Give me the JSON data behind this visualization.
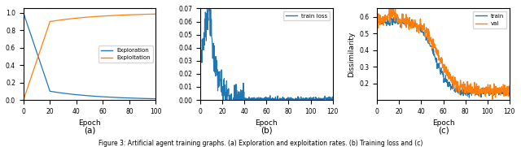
{
  "fig_width": 6.4,
  "fig_height": 1.81,
  "dpi": 100,
  "subplot_a": {
    "xlabel": "Epoch",
    "xlim": [
      0,
      100
    ],
    "ylim": [
      0,
      1.05
    ],
    "yticks": [
      0.0,
      0.2,
      0.4,
      0.6,
      0.8,
      1.0
    ],
    "xticks": [
      0,
      20,
      40,
      60,
      80,
      100
    ],
    "label_a": "(a)",
    "exploration_color": "#1f77b4",
    "exploitation_color": "#ff7f0e",
    "legend_labels": [
      "Exploration",
      "Exploitation"
    ]
  },
  "subplot_b": {
    "xlabel": "Epoch",
    "xlim": [
      0,
      120
    ],
    "ylim": [
      0,
      0.07
    ],
    "yticks": [
      0.0,
      0.01,
      0.02,
      0.03,
      0.04,
      0.05,
      0.06,
      0.07
    ],
    "xticks": [
      0,
      20,
      40,
      60,
      80,
      100,
      120
    ],
    "label_b": "(b)",
    "line_color": "#1f77b4",
    "legend_label": "train loss"
  },
  "subplot_c": {
    "xlabel": "Epoch",
    "ylabel": "Dissimilarity",
    "xlim": [
      0,
      120
    ],
    "ylim": [
      0.1,
      0.65
    ],
    "yticks": [
      0.2,
      0.3,
      0.4,
      0.5,
      0.6
    ],
    "xticks": [
      0,
      20,
      40,
      60,
      80,
      100,
      120
    ],
    "label_c": "(c)",
    "train_color": "#1f77b4",
    "val_color": "#ff7f0e",
    "legend_labels": [
      "train",
      "val"
    ]
  },
  "caption": "Figure 3: Artificial agent training graphs. (a) Exploration and exploitation rates. (b) Training loss and (c)"
}
